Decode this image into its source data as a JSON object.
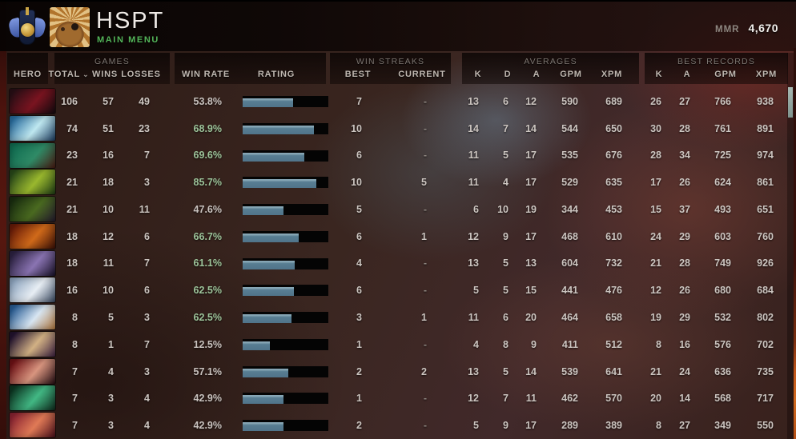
{
  "header": {
    "title": "HSPT",
    "subtitle": "MAIN MENU",
    "mmr_label": "MMR",
    "mmr_value": "4,670"
  },
  "table": {
    "groups": {
      "games": "GAMES",
      "win_streaks": "WIN STREAKS",
      "averages": "AVERAGES",
      "best_records": "BEST RECORDS"
    },
    "columns": {
      "hero": "HERO",
      "total": "TOTAL",
      "sort_indicator": "⌄",
      "wins": "WINS",
      "losses": "LOSSES",
      "win_rate": "WIN RATE",
      "rating": "RATING",
      "best": "BEST",
      "current": "CURRENT",
      "k": "K",
      "d": "D",
      "a": "A",
      "gpm": "GPM",
      "xpm": "XPM"
    },
    "rows": [
      {
        "total": "106",
        "wins": "57",
        "losses": "49",
        "win_rate": "53.8%",
        "positive": false,
        "fill": 59,
        "best": "7",
        "current": "-",
        "k": "13",
        "d": "6",
        "a": "12",
        "gpm": "590",
        "xpm": "689",
        "bk": "26",
        "ba": "27",
        "bgpm": "766",
        "bxpm": "938",
        "portrait": [
          "#2a0f16",
          "#7a1420",
          "#120a0e"
        ]
      },
      {
        "total": "74",
        "wins": "51",
        "losses": "23",
        "win_rate": "68.9%",
        "positive": true,
        "fill": 83,
        "best": "10",
        "current": "-",
        "k": "14",
        "d": "7",
        "a": "14",
        "gpm": "544",
        "xpm": "650",
        "bk": "30",
        "ba": "28",
        "bgpm": "761",
        "bxpm": "891",
        "portrait": [
          "#2a6ea0",
          "#bfe8f0",
          "#1a3a5e"
        ]
      },
      {
        "total": "23",
        "wins": "16",
        "losses": "7",
        "win_rate": "69.6%",
        "positive": true,
        "fill": 72,
        "best": "6",
        "current": "-",
        "k": "11",
        "d": "5",
        "a": "17",
        "gpm": "535",
        "xpm": "676",
        "bk": "28",
        "ba": "34",
        "bgpm": "725",
        "bxpm": "974",
        "portrait": [
          "#116e52",
          "#2f8a66",
          "#4a1a12"
        ]
      },
      {
        "total": "21",
        "wins": "18",
        "losses": "3",
        "win_rate": "85.7%",
        "positive": true,
        "fill": 86,
        "best": "10",
        "current": "5",
        "k": "11",
        "d": "4",
        "a": "17",
        "gpm": "529",
        "xpm": "635",
        "bk": "17",
        "ba": "26",
        "bgpm": "624",
        "bxpm": "861",
        "portrait": [
          "#2a4a1a",
          "#9ab82e",
          "#1d3a14"
        ]
      },
      {
        "total": "21",
        "wins": "10",
        "losses": "11",
        "win_rate": "47.6%",
        "positive": false,
        "fill": 48,
        "best": "5",
        "current": "-",
        "k": "6",
        "d": "10",
        "a": "19",
        "gpm": "344",
        "xpm": "453",
        "bk": "15",
        "ba": "37",
        "bgpm": "493",
        "bxpm": "651",
        "portrait": [
          "#1a2e10",
          "#4a6a20",
          "#241a2e"
        ]
      },
      {
        "total": "18",
        "wins": "12",
        "losses": "6",
        "win_rate": "66.7%",
        "positive": true,
        "fill": 65,
        "best": "6",
        "current": "1",
        "k": "12",
        "d": "9",
        "a": "17",
        "gpm": "468",
        "xpm": "610",
        "bk": "24",
        "ba": "29",
        "bgpm": "603",
        "bxpm": "760",
        "portrait": [
          "#6a1c08",
          "#d06a1a",
          "#3a0f06"
        ]
      },
      {
        "total": "18",
        "wins": "11",
        "losses": "7",
        "win_rate": "61.1%",
        "positive": true,
        "fill": 61,
        "best": "4",
        "current": "-",
        "k": "13",
        "d": "5",
        "a": "13",
        "gpm": "604",
        "xpm": "732",
        "bk": "21",
        "ba": "28",
        "bgpm": "749",
        "bxpm": "926",
        "portrait": [
          "#2e2344",
          "#8a74b2",
          "#171026"
        ]
      },
      {
        "total": "16",
        "wins": "10",
        "losses": "6",
        "win_rate": "62.5%",
        "positive": true,
        "fill": 60,
        "best": "6",
        "current": "-",
        "k": "5",
        "d": "5",
        "a": "15",
        "gpm": "441",
        "xpm": "476",
        "bk": "12",
        "ba": "26",
        "bgpm": "680",
        "bxpm": "684",
        "portrait": [
          "#8fa6c0",
          "#e8eef4",
          "#36465e"
        ]
      },
      {
        "total": "8",
        "wins": "5",
        "losses": "3",
        "win_rate": "62.5%",
        "positive": true,
        "fill": 57,
        "best": "3",
        "current": "1",
        "k": "11",
        "d": "6",
        "a": "20",
        "gpm": "464",
        "xpm": "658",
        "bk": "19",
        "ba": "29",
        "bgpm": "532",
        "bxpm": "802",
        "portrait": [
          "#2a5e96",
          "#d8e6f2",
          "#b0763c"
        ]
      },
      {
        "total": "8",
        "wins": "1",
        "losses": "7",
        "win_rate": "12.5%",
        "positive": false,
        "fill": 32,
        "best": "1",
        "current": "-",
        "k": "4",
        "d": "8",
        "a": "9",
        "gpm": "411",
        "xpm": "512",
        "bk": "8",
        "ba": "16",
        "bgpm": "576",
        "bxpm": "702",
        "portrait": [
          "#241430",
          "#d2b184",
          "#3c2040"
        ]
      },
      {
        "total": "7",
        "wins": "4",
        "losses": "3",
        "win_rate": "57.1%",
        "positive": false,
        "fill": 53,
        "best": "2",
        "current": "2",
        "k": "13",
        "d": "5",
        "a": "14",
        "gpm": "539",
        "xpm": "641",
        "bk": "21",
        "ba": "24",
        "bgpm": "636",
        "bxpm": "735",
        "portrait": [
          "#701216",
          "#d8957f",
          "#240c12"
        ]
      },
      {
        "total": "7",
        "wins": "3",
        "losses": "4",
        "win_rate": "42.9%",
        "positive": false,
        "fill": 48,
        "best": "1",
        "current": "-",
        "k": "12",
        "d": "7",
        "a": "11",
        "gpm": "462",
        "xpm": "570",
        "bk": "20",
        "ba": "14",
        "bgpm": "568",
        "bxpm": "717",
        "portrait": [
          "#0c3622",
          "#42b884",
          "#0e2a1c"
        ]
      },
      {
        "total": "7",
        "wins": "3",
        "losses": "4",
        "win_rate": "42.9%",
        "positive": false,
        "fill": 48,
        "best": "2",
        "current": "-",
        "k": "5",
        "d": "9",
        "a": "17",
        "gpm": "289",
        "xpm": "389",
        "bk": "8",
        "ba": "27",
        "bgpm": "349",
        "bxpm": "550",
        "portrait": [
          "#8c2432",
          "#e07a56",
          "#4a0e1a"
        ]
      }
    ]
  },
  "colors": {
    "accent_green": "#9dc49a",
    "text_neutral": "#cac3bf",
    "bar_fill": "#567a8e",
    "bar_fill_highlight": "#87a6b5",
    "bar_track": "#040404",
    "main_menu_green": "#55b65a",
    "scroll_thumb": "#92a5a2"
  }
}
